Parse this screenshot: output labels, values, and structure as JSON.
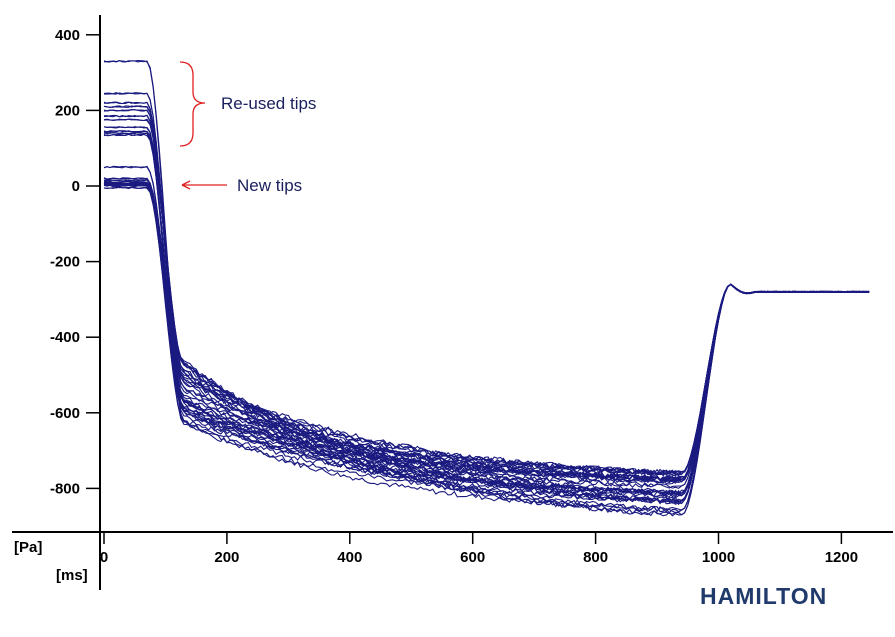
{
  "chart_data": {
    "type": "line",
    "xlabel": "[ms]",
    "ylabel": "[Pa]",
    "xlim": [
      -5,
      1250
    ],
    "ylim": [
      -900,
      420
    ],
    "x_ticks": [
      0,
      200,
      400,
      600,
      800,
      1000,
      1200
    ],
    "x_tick_labels": [
      "0",
      "200",
      "400",
      "600",
      "800",
      "1000",
      "1200"
    ],
    "y_ticks": [
      400,
      200,
      0,
      -200,
      -400,
      -600,
      -800
    ],
    "y_tick_labels": [
      "400",
      "200",
      "0",
      "-200",
      "-400",
      "-600",
      "-800"
    ],
    "grid": false,
    "line_color": "#1a1a80",
    "series_groups": {
      "reused_tip_start_values": [
        330,
        245,
        220,
        210,
        200,
        185,
        175,
        155,
        145,
        140,
        135
      ],
      "new_tip_start_values": [
        50,
        20,
        15,
        10,
        8,
        5,
        3,
        0,
        -5
      ],
      "plateau_end_ms": 70,
      "drop_to_ms": 130,
      "drop_min_values": [
        -620,
        -600,
        -580,
        -560,
        -540,
        -520,
        -500,
        -480,
        -460
      ],
      "end_segment_values_at_940ms": [
        -860,
        -840,
        -820,
        -800,
        -790,
        -780,
        -770,
        -760
      ],
      "recovery_peak": {
        "x": 1020,
        "y": -260
      },
      "final_value": -280,
      "end_ms": 1245
    },
    "annotations": [
      {
        "text": "Re-used tips",
        "type": "brace",
        "y_range": [
          330,
          105
        ]
      },
      {
        "text": "New tips",
        "type": "arrow",
        "points_to": {
          "x": 120,
          "y": 0
        }
      }
    ]
  },
  "annotations": {
    "reused": "Re-used tips",
    "new": "New tips"
  },
  "logo": {
    "text": "HAMILTON",
    "color": "#1f3a6b"
  },
  "colors": {
    "line": "#1a1a80",
    "annotation": "#e02020",
    "axis": "#000000"
  }
}
